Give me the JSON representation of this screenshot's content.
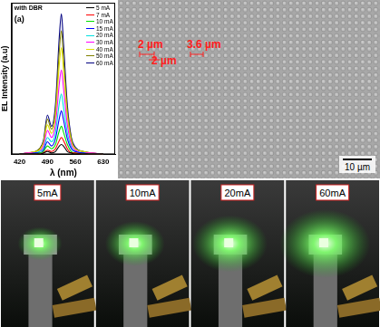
{
  "chart_data": {
    "type": "line",
    "annotations": [
      "with DBR",
      "(a)"
    ],
    "x_label": "λ (nm)",
    "y_label": "EL Intensity (a.u)",
    "x": [
      420,
      440,
      460,
      470,
      480,
      490,
      500,
      510,
      520,
      525,
      530,
      540,
      550,
      560,
      580,
      600,
      630
    ],
    "series": [
      {
        "name": "5 mA",
        "color": "#000000",
        "values": [
          0,
          0,
          0,
          0,
          0.01,
          0.02,
          0.01,
          0.02,
          0.06,
          0.07,
          0.06,
          0.02,
          0.01,
          0,
          0,
          0,
          0
        ]
      },
      {
        "name": "7 mA",
        "color": "#ff0000",
        "values": [
          0,
          0,
          0,
          0,
          0.01,
          0.03,
          0.02,
          0.04,
          0.1,
          0.12,
          0.1,
          0.04,
          0.01,
          0.01,
          0,
          0,
          0
        ]
      },
      {
        "name": "10 mA",
        "color": "#00e000",
        "values": [
          0,
          0,
          0,
          0.01,
          0.02,
          0.06,
          0.04,
          0.07,
          0.17,
          0.2,
          0.16,
          0.07,
          0.02,
          0.01,
          0,
          0,
          0
        ]
      },
      {
        "name": "15 mA",
        "color": "#0000ff",
        "values": [
          0,
          0,
          0.01,
          0.01,
          0.03,
          0.09,
          0.06,
          0.11,
          0.26,
          0.31,
          0.25,
          0.11,
          0.04,
          0.02,
          0.01,
          0,
          0
        ]
      },
      {
        "name": "20 mA",
        "color": "#00e0e0",
        "values": [
          0,
          0,
          0.01,
          0.02,
          0.04,
          0.12,
          0.09,
          0.15,
          0.37,
          0.43,
          0.34,
          0.15,
          0.05,
          0.02,
          0.01,
          0,
          0
        ]
      },
      {
        "name": "30 mA",
        "color": "#ff00ff",
        "values": [
          0,
          0.01,
          0.01,
          0.02,
          0.06,
          0.17,
          0.12,
          0.21,
          0.51,
          0.6,
          0.48,
          0.21,
          0.07,
          0.03,
          0.01,
          0.01,
          0
        ]
      },
      {
        "name": "40 mA",
        "color": "#e0e000",
        "values": [
          0,
          0.01,
          0.02,
          0.03,
          0.08,
          0.21,
          0.15,
          0.27,
          0.65,
          0.76,
          0.61,
          0.27,
          0.09,
          0.04,
          0.02,
          0.01,
          0
        ]
      },
      {
        "name": "50 mA",
        "color": "#808000",
        "values": [
          0,
          0.01,
          0.02,
          0.04,
          0.09,
          0.25,
          0.18,
          0.31,
          0.75,
          0.88,
          0.7,
          0.31,
          0.11,
          0.04,
          0.02,
          0.01,
          0
        ]
      },
      {
        "name": "60 mA",
        "color": "#000080",
        "values": [
          0,
          0.01,
          0.02,
          0.04,
          0.1,
          0.28,
          0.2,
          0.35,
          0.85,
          1.0,
          0.8,
          0.35,
          0.12,
          0.05,
          0.02,
          0.01,
          0
        ]
      }
    ],
    "xlim": [
      400,
      660
    ],
    "xticks": [
      420,
      490,
      560,
      630
    ],
    "ylim": [
      0,
      1.08
    ],
    "tick_labels": "x",
    "grid": false,
    "legend": "upper right"
  },
  "sem_image": {
    "annotations": [
      "2 µm",
      "2 µm",
      "3.6 µm"
    ],
    "scale_bar": "10 µm"
  },
  "photos": [
    {
      "label": "5mA"
    },
    {
      "label": "10mA"
    },
    {
      "label": "20mA"
    },
    {
      "label": "60mA"
    }
  ]
}
